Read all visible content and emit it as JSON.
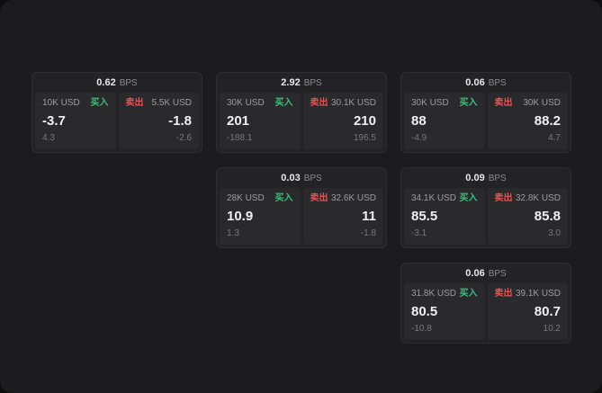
{
  "labels": {
    "bps": "BPS",
    "buy": "买入",
    "sell": "卖出"
  },
  "colors": {
    "buy_green": "#3fbf7f",
    "sell_red": "#e05555",
    "card_bg": "#232326",
    "panel_bg": "#2a2a2d",
    "page_bg": "#1c1c1e"
  },
  "cards": [
    {
      "bps": "0.62",
      "buy": {
        "notional": "10K USD",
        "price": "-3.7",
        "sub": "4.3"
      },
      "sell": {
        "notional": "5.5K USD",
        "price": "-1.8",
        "sub": "-2.6"
      }
    },
    {
      "bps": "2.92",
      "buy": {
        "notional": "30K USD",
        "price": "201",
        "sub": "-188.1"
      },
      "sell": {
        "notional": "30.1K USD",
        "price": "210",
        "sub": "196.5"
      }
    },
    {
      "bps": "0.06",
      "buy": {
        "notional": "30K USD",
        "price": "88",
        "sub": "-4.9"
      },
      "sell": {
        "notional": "30K USD",
        "price": "88.2",
        "sub": "4.7"
      }
    },
    {
      "bps": "0.03",
      "buy": {
        "notional": "28K USD",
        "price": "10.9",
        "sub": "1.3"
      },
      "sell": {
        "notional": "32.6K USD",
        "price": "11",
        "sub": "-1.8"
      }
    },
    {
      "bps": "0.09",
      "buy": {
        "notional": "34.1K USD",
        "price": "85.5",
        "sub": "-3.1"
      },
      "sell": {
        "notional": "32.8K USD",
        "price": "85.8",
        "sub": "3.0"
      }
    },
    {
      "bps": "0.06",
      "buy": {
        "notional": "31.8K USD",
        "price": "80.5",
        "sub": "-10.8"
      },
      "sell": {
        "notional": "39.1K USD",
        "price": "80.7",
        "sub": "10.2"
      }
    }
  ]
}
